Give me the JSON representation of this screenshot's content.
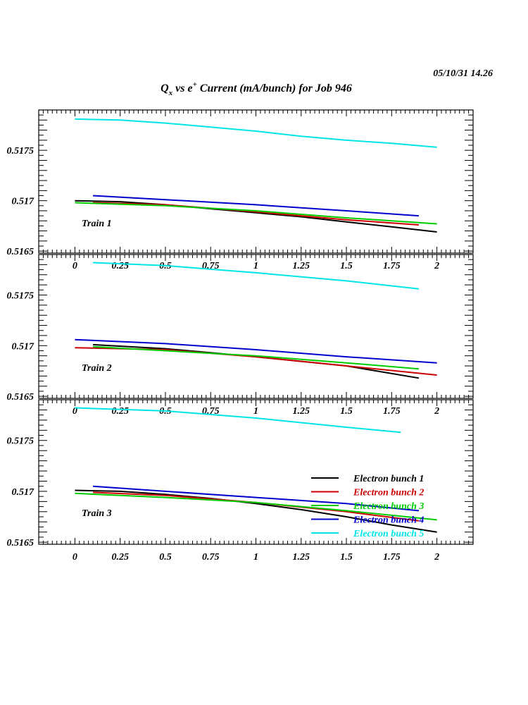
{
  "header": {
    "timestamp": "05/10/31   14.26",
    "title_main": "Q",
    "title_sub": "x",
    "title_mid": " vs e",
    "title_sup": "+",
    "title_end": " Current (mA/bunch) for Job 946"
  },
  "colors": {
    "bunch1": "#000000",
    "bunch2": "#cc0000",
    "bunch3": "#00cc00",
    "bunch4": "#0000cc",
    "bunch5": "#00e5e5"
  },
  "chart_data": [
    {
      "type": "line",
      "panel_label": "Train 1",
      "xlim": [
        -0.2,
        2.2
      ],
      "ylim": [
        0.51648,
        0.5179
      ],
      "x_ticks": [
        "0",
        "0.25",
        "0.5",
        "0.75",
        "1",
        "1.25",
        "1.5",
        "1.75",
        "2"
      ],
      "y_ticks": [
        "0.5165",
        "0.517",
        "0.5175"
      ],
      "series": [
        {
          "name": "Electron bunch 1",
          "color_key": "bunch1",
          "x": [
            0,
            0.25,
            0.5,
            0.75,
            1,
            1.25,
            1.5,
            1.75,
            2
          ],
          "y": [
            0.517,
            0.51699,
            0.51696,
            0.51692,
            0.51688,
            0.51684,
            0.51679,
            0.51674,
            0.51669
          ]
        },
        {
          "name": "Electron bunch 2",
          "color_key": "bunch2",
          "x": [
            0.1,
            0.5,
            1,
            1.5,
            1.9
          ],
          "y": [
            0.51698,
            0.51696,
            0.51689,
            0.51681,
            0.51676
          ]
        },
        {
          "name": "Electron bunch 3",
          "color_key": "bunch3",
          "x": [
            0,
            0.5,
            1,
            1.5,
            2
          ],
          "y": [
            0.51698,
            0.51695,
            0.5169,
            0.51683,
            0.51677
          ]
        },
        {
          "name": "Electron bunch 4",
          "color_key": "bunch4",
          "x": [
            0.1,
            0.5,
            1,
            1.5,
            1.9
          ],
          "y": [
            0.51705,
            0.51701,
            0.51696,
            0.5169,
            0.51685
          ]
        },
        {
          "name": "Electron bunch 5",
          "color_key": "bunch5",
          "x": [
            0,
            0.25,
            0.5,
            0.75,
            1,
            1.25,
            1.5,
            1.75,
            2
          ],
          "y": [
            0.51781,
            0.5178,
            0.51777,
            0.51773,
            0.51769,
            0.51764,
            0.5176,
            0.51757,
            0.51753
          ]
        }
      ]
    },
    {
      "type": "line",
      "panel_label": "Train 2",
      "xlim": [
        -0.2,
        2.2
      ],
      "ylim": [
        0.51648,
        0.5179
      ],
      "x_ticks": [
        "0",
        "0.25",
        "0.5",
        "0.75",
        "1",
        "1.25",
        "1.5",
        "1.75",
        "2"
      ],
      "y_ticks": [
        "0.5165",
        "0.517",
        "0.5175"
      ],
      "series": [
        {
          "name": "Electron bunch 1",
          "color_key": "bunch1",
          "x": [
            0.1,
            0.5,
            1,
            1.5,
            1.9
          ],
          "y": [
            0.51701,
            0.51697,
            0.51689,
            0.5168,
            0.51668
          ]
        },
        {
          "name": "Electron bunch 2",
          "color_key": "bunch2",
          "x": [
            0,
            0.5,
            1,
            1.5,
            2
          ],
          "y": [
            0.51698,
            0.51696,
            0.51689,
            0.5168,
            0.51671
          ]
        },
        {
          "name": "Electron bunch 3",
          "color_key": "bunch3",
          "x": [
            0.1,
            0.5,
            1,
            1.5,
            1.9
          ],
          "y": [
            0.51699,
            0.51695,
            0.5169,
            0.51683,
            0.51677
          ]
        },
        {
          "name": "Electron bunch 4",
          "color_key": "bunch4",
          "x": [
            0,
            0.5,
            1,
            1.5,
            2
          ],
          "y": [
            0.51706,
            0.51702,
            0.51696,
            0.51689,
            0.51683
          ]
        },
        {
          "name": "Electron bunch 5",
          "color_key": "bunch5",
          "x": [
            0.1,
            0.5,
            1,
            1.5,
            1.9
          ],
          "y": [
            0.51782,
            0.51779,
            0.51772,
            0.51764,
            0.51756
          ]
        }
      ]
    },
    {
      "type": "line",
      "panel_label": "Train 3",
      "xlim": [
        -0.2,
        2.2
      ],
      "ylim": [
        0.51648,
        0.5179
      ],
      "x_ticks": [
        "0",
        "0.25",
        "0.5",
        "0.75",
        "1",
        "1.25",
        "1.5",
        "1.75",
        "2"
      ],
      "y_ticks": [
        "0.5165",
        "0.517",
        "0.5175"
      ],
      "series": [
        {
          "name": "Electron bunch 1",
          "color_key": "bunch1",
          "x": [
            0,
            0.25,
            0.5,
            0.75,
            1,
            1.25,
            1.5,
            1.75,
            2
          ],
          "y": [
            0.51701,
            0.517,
            0.51697,
            0.51693,
            0.51688,
            0.51682,
            0.51675,
            0.51667,
            0.5166
          ]
        },
        {
          "name": "Electron bunch 2",
          "color_key": "bunch2",
          "x": [
            0.1,
            0.5,
            1,
            1.5,
            1.9
          ],
          "y": [
            0.51699,
            0.51696,
            0.51689,
            0.5168,
            0.51671
          ]
        },
        {
          "name": "Electron bunch 3",
          "color_key": "bunch3",
          "x": [
            0,
            0.5,
            1,
            1.5,
            2
          ],
          "y": [
            0.51698,
            0.51694,
            0.51689,
            0.51681,
            0.51672
          ]
        },
        {
          "name": "Electron bunch 4",
          "color_key": "bunch4",
          "x": [
            0.1,
            0.5,
            1,
            1.5,
            1.9
          ],
          "y": [
            0.51705,
            0.517,
            0.51694,
            0.51688,
            0.51681
          ]
        },
        {
          "name": "Electron bunch 5",
          "color_key": "bunch5",
          "x": [
            0,
            0.5,
            1,
            1.5,
            1.8
          ],
          "y": [
            0.51782,
            0.51779,
            0.51772,
            0.51763,
            0.51758
          ]
        }
      ]
    }
  ],
  "legend": {
    "placement": "bottom-right of lowest panel",
    "entries": [
      {
        "label": "Electron bunch 1",
        "color_key": "bunch1"
      },
      {
        "label": "Electron bunch 2",
        "color_key": "bunch2"
      },
      {
        "label": "Electron bunch 3",
        "color_key": "bunch3"
      },
      {
        "label": "Electron bunch 4",
        "color_key": "bunch4"
      },
      {
        "label": "Electron bunch 5",
        "color_key": "bunch5"
      }
    ]
  }
}
